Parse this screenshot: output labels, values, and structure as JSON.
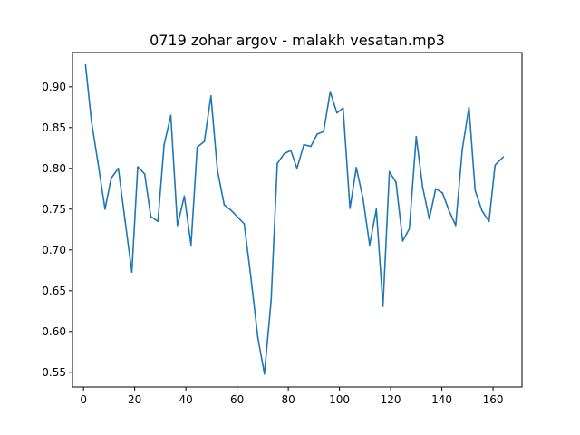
{
  "chart_data": {
    "type": "line",
    "title": "0719 zohar argov - malakh vesatan.mp3",
    "xlabel": "",
    "ylabel": "",
    "xlim": [
      -4.3,
      171.3
    ],
    "ylim": [
      0.532,
      0.942
    ],
    "xticks": [
      0,
      20,
      40,
      60,
      80,
      100,
      120,
      140,
      160
    ],
    "yticks": [
      0.55,
      0.6,
      0.65,
      0.7,
      0.75,
      0.8,
      0.85,
      0.9
    ],
    "ytick_labels": [
      "0.55",
      "0.60",
      "0.65",
      "0.70",
      "0.75",
      "0.80",
      "0.85",
      "0.90"
    ],
    "grid": false,
    "series": [
      {
        "color": "#1f77b4",
        "x": [
          0.8,
          3.1,
          5.6,
          8.4,
          10.8,
          13.6,
          16.2,
          18.9,
          21.2,
          23.9,
          26.3,
          29.1,
          31.5,
          34.1,
          36.7,
          39.4,
          42.0,
          44.4,
          47.2,
          49.8,
          52.3,
          55.0,
          57.5,
          62.8,
          65.4,
          68.1,
          70.7,
          73.3,
          75.7,
          78.4,
          81.0,
          83.4,
          86.1,
          88.8,
          91.3,
          93.8,
          96.4,
          99.0,
          101.4,
          104.1,
          106.6,
          109.2,
          111.8,
          114.4,
          117.0,
          119.5,
          122.1,
          124.7,
          127.3,
          130.0,
          132.5,
          135.1,
          137.6,
          140.2,
          142.7,
          145.4,
          148.0,
          150.6,
          153.0,
          155.7,
          158.4,
          160.8,
          164.0
        ],
        "y": [
          0.927,
          0.858,
          0.808,
          0.75,
          0.788,
          0.8,
          0.737,
          0.673,
          0.802,
          0.793,
          0.741,
          0.735,
          0.829,
          0.865,
          0.73,
          0.766,
          0.706,
          0.826,
          0.833,
          0.889,
          0.798,
          0.755,
          0.749,
          0.732,
          0.666,
          0.593,
          0.548,
          0.638,
          0.806,
          0.818,
          0.822,
          0.8,
          0.829,
          0.827,
          0.842,
          0.845,
          0.894,
          0.868,
          0.874,
          0.751,
          0.801,
          0.763,
          0.706,
          0.75,
          0.631,
          0.796,
          0.783,
          0.711,
          0.726,
          0.839,
          0.777,
          0.738,
          0.775,
          0.77,
          0.749,
          0.73,
          0.824,
          0.875,
          0.773,
          0.748,
          0.735,
          0.804,
          0.814
        ]
      }
    ]
  }
}
